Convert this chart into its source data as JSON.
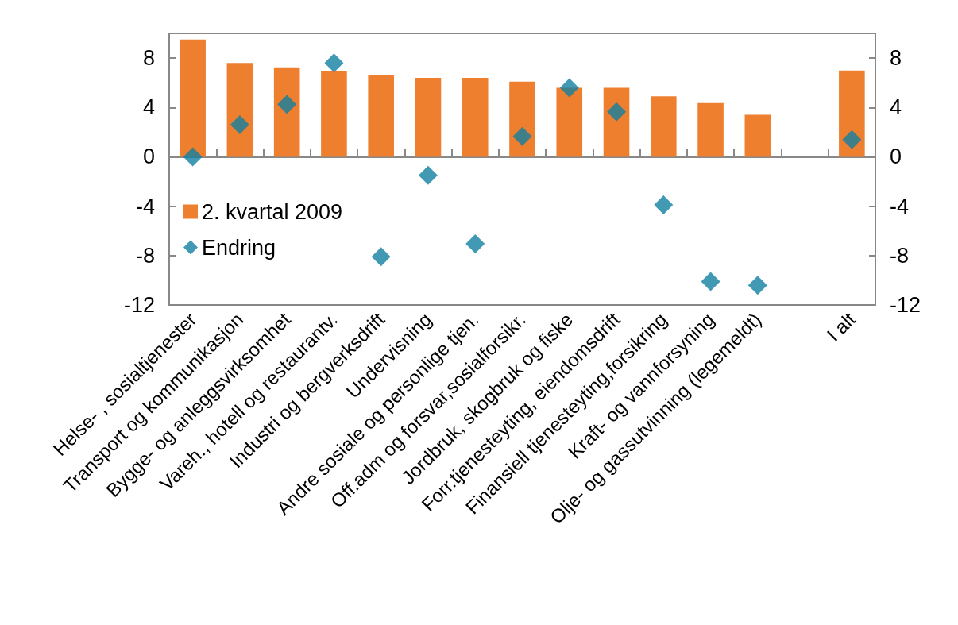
{
  "chart_data": {
    "type": "bar",
    "categories": [
      "Helse- , sosialtjenester",
      "Transport og kommunikasjon",
      "Bygge- og anleggsvirksomhet",
      "Vareh., hotell og restaurantv.",
      "Industri og bergverksdrift",
      "Undervisning",
      "Andre sosiale og personlige tjen.",
      "Off.adm og forsvar,sosialforsikr.",
      "Jordbruk, skogbruk og fiske",
      "Forr.tjenesteyting, eiendomsdrift",
      "Finansiell tjenesteyting,forsikring",
      "Kraft- og vannforsyning",
      "Olje- og gassutvinning (legemeldt)",
      null,
      "I alt"
    ],
    "series": [
      {
        "name": "2. kvartal 2009",
        "color": "#ed7f2f",
        "values": [
          9.5,
          7.6,
          7.25,
          6.95,
          6.6,
          6.4,
          6.4,
          6.1,
          5.6,
          5.6,
          4.9,
          4.35,
          3.4,
          null,
          7.0
        ]
      },
      {
        "name": "Endring",
        "type": "scatter",
        "color": "#127fa1",
        "values": [
          0,
          2.6,
          4.25,
          7.6,
          -8.1,
          -1.5,
          -7.05,
          1.65,
          5.6,
          3.65,
          -3.9,
          -10.1,
          -10.4,
          null,
          1.4
        ]
      }
    ],
    "ylim": [
      -12,
      10
    ],
    "yticks": [
      -12,
      -8,
      -4,
      0,
      4,
      8
    ],
    "y2lim": [
      -12,
      10
    ],
    "y2ticks": [
      -12,
      -8,
      -4,
      0,
      4,
      8
    ],
    "marker": "diamond",
    "legend": "left"
  }
}
